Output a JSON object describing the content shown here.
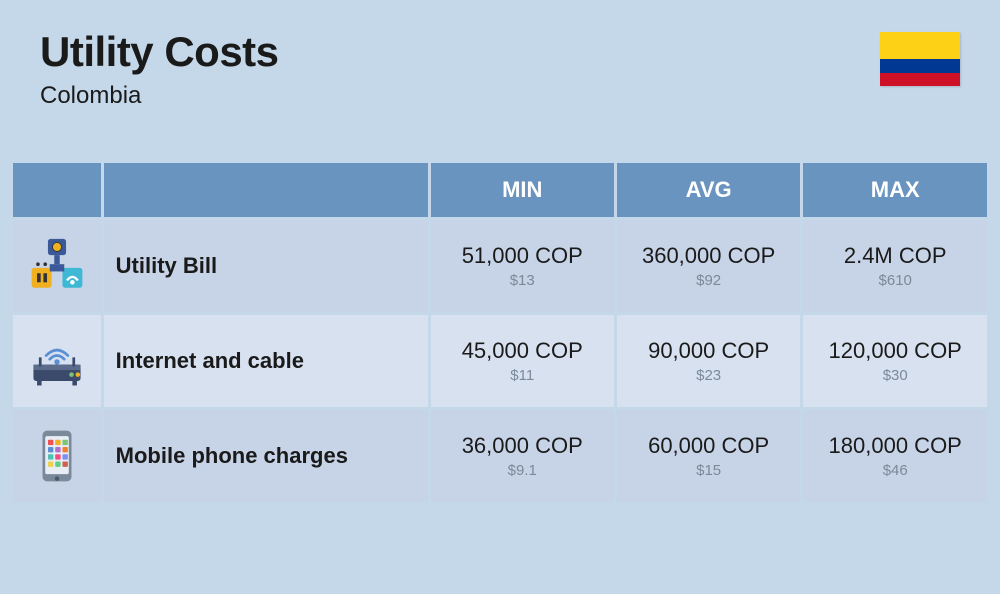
{
  "header": {
    "title": "Utility Costs",
    "country": "Colombia"
  },
  "flag": {
    "stripes": [
      {
        "color": "#fcd116",
        "height": 27
      },
      {
        "color": "#003893",
        "height": 13.5
      },
      {
        "color": "#ce1126",
        "height": 13.5
      }
    ]
  },
  "table": {
    "header_bg": "#6a94c0",
    "row_odd_bg": "#c7d3e6",
    "row_even_bg": "#d7e1ef",
    "columns": [
      "MIN",
      "AVG",
      "MAX"
    ],
    "rows": [
      {
        "label": "Utility Bill",
        "icon": "utility",
        "values": [
          {
            "primary": "51,000 COP",
            "secondary": "$13"
          },
          {
            "primary": "360,000 COP",
            "secondary": "$92"
          },
          {
            "primary": "2.4M COP",
            "secondary": "$610"
          }
        ]
      },
      {
        "label": "Internet and cable",
        "icon": "router",
        "values": [
          {
            "primary": "45,000 COP",
            "secondary": "$11"
          },
          {
            "primary": "90,000 COP",
            "secondary": "$23"
          },
          {
            "primary": "120,000 COP",
            "secondary": "$30"
          }
        ]
      },
      {
        "label": "Mobile phone charges",
        "icon": "phone",
        "values": [
          {
            "primary": "36,000 COP",
            "secondary": "$9.1"
          },
          {
            "primary": "60,000 COP",
            "secondary": "$15"
          },
          {
            "primary": "180,000 COP",
            "secondary": "$46"
          }
        ]
      }
    ]
  },
  "icons": {
    "utility": "<svg viewBox='0 0 64 64' width='58' height='58'><rect x='22' y='2' width='20' height='18' rx='3' fill='#3b5998'/><circle cx='32' cy='11' r='5' fill='#f0b020' stroke='#333' stroke-width='1'/><rect x='29' y='20' width='6' height='10' fill='#3b5998'/><rect x='4' y='34' width='22' height='22' rx='3' fill='#f0b020'/><rect x='10' y='40' width='4' height='10' fill='#333'/><rect x='17' y='40' width='4' height='10' fill='#333'/><circle cx='11' cy='30' r='2' fill='#333'/><circle cx='19' cy='30' r='2' fill='#333'/><rect x='38' y='34' width='22' height='22' rx='3' fill='#3eb8d4'/><path d='M43 48 Q49 40 55 48' stroke='#fff' stroke-width='2.5' fill='none'/><circle cx='49' cy='50' r='2.5' fill='#fff'/><rect x='24' y='30' width='16' height='8' fill='#3b5998'/></svg>",
    "router": "<svg viewBox='0 0 64 64' width='58' height='58'><rect x='6' y='36' width='52' height='18' rx='3' fill='#3b4a6b'/><rect x='6' y='36' width='52' height='6' fill='#5a6b8c'/><circle cx='48' cy='47' r='2.5' fill='#7cc576'/><circle cx='55' cy='47' r='2.5' fill='#f0b020'/><rect x='12' y='28' width='3' height='10' fill='#3b4a6b'/><rect x='49' y='28' width='3' height='10' fill='#3b4a6b'/><path d='M20 26 Q32 14 44 26' stroke='#5a8fd4' stroke-width='3' fill='none' stroke-linecap='round'/><path d='M24 30 Q32 22 40 30' stroke='#5a8fd4' stroke-width='3' fill='none' stroke-linecap='round'/><circle cx='32' cy='33' r='3' fill='#5a8fd4'/><rect x='10' y='54' width='5' height='5' fill='#3b4a6b'/><rect x='49' y='54' width='5' height='5' fill='#3b4a6b'/></svg>",
    "phone": "<svg viewBox='0 0 64 64' width='58' height='58'><rect x='16' y='4' width='32' height='56' rx='5' fill='#7a8a9a'/><rect x='19' y='10' width='26' height='42' rx='2' fill='#e8eef5'/><circle cx='32' cy='57' r='2.5' fill='#4a5a6a'/><rect x='22' y='14' width='6' height='6' rx='1' fill='#f05050'/><rect x='30' y='14' width='6' height='6' rx='1' fill='#f0b020'/><rect x='38' y='14' width='6' height='6' rx='1' fill='#7cc576'/><rect x='22' y='22' width='6' height='6' rx='1' fill='#5a8fd4'/><rect x='30' y='22' width='6' height='6' rx='1' fill='#b070d0'/><rect x='38' y='22' width='6' height='6' rx='1' fill='#f08030'/><rect x='22' y='30' width='6' height='6' rx='1' fill='#50c0b0'/><rect x='30' y='30' width='6' height='6' rx='1' fill='#f05080'/><rect x='38' y='30' width='6' height='6' rx='1' fill='#8090f0'/><rect x='22' y='38' width='6' height='6' rx='1' fill='#f0d050'/><rect x='30' y='38' width='6' height='6' rx='1' fill='#60d080'/><rect x='38' y='38' width='6' height='6' rx='1' fill='#d06050'/></svg>"
  }
}
